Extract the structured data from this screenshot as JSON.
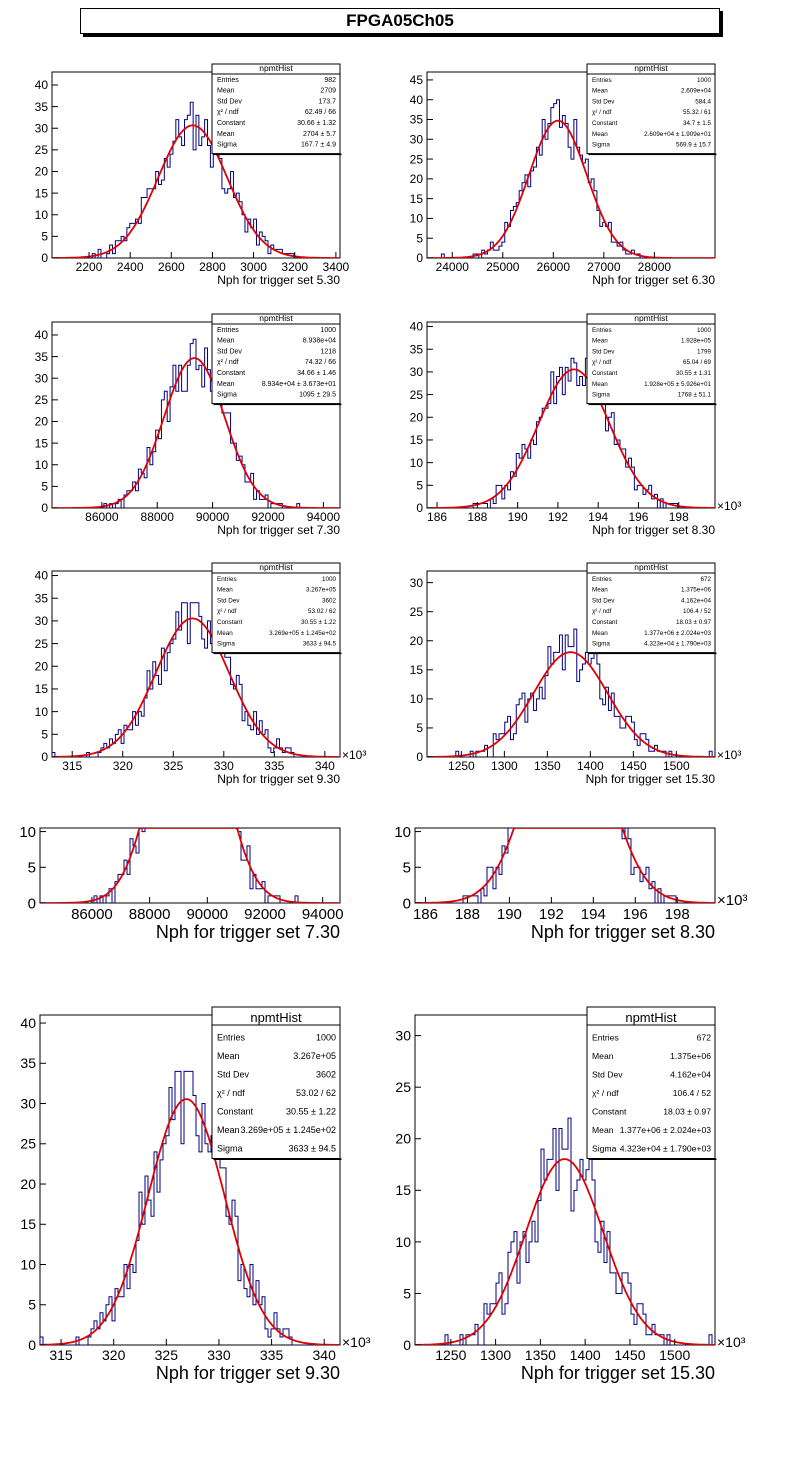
{
  "title": "FPGA05Ch05",
  "colors": {
    "hist": "#000080",
    "fit": "#e00000",
    "axis": "#000000"
  },
  "stat_title": "npmtHist",
  "chart_data": [
    {
      "type": "histogram",
      "xlabel": "Nph for trigger set 5.30",
      "xlim": [
        2020,
        3420
      ],
      "ylim": [
        0,
        43
      ],
      "xticks": [
        2200,
        2400,
        2600,
        2800,
        3000,
        3200,
        3400
      ],
      "xtick_labels": [
        "2200",
        "2400",
        "2600",
        "2800",
        "3000",
        "3200",
        "3400"
      ],
      "yticks": [
        0,
        5,
        10,
        15,
        20,
        25,
        30,
        35,
        40
      ],
      "multiplier": "",
      "fit": {
        "constant": 30.66,
        "mean": 2704,
        "sigma": 167.7
      },
      "noise_seed": 11,
      "stats": [
        [
          "Entries",
          "982"
        ],
        [
          "Mean",
          "2709"
        ],
        [
          "Std Dev",
          "173.7"
        ],
        [
          "χ² / ndf",
          "62.49 / 66"
        ],
        [
          "Constant",
          "30.66 ± 1.32"
        ],
        [
          "Mean",
          "2704 ± 5.7"
        ],
        [
          "Sigma",
          "167.7 ± 4.9"
        ]
      ]
    },
    {
      "type": "histogram",
      "xlabel": "Nph for trigger set 6.30",
      "xlim": [
        23500,
        29200
      ],
      "ylim": [
        0,
        47
      ],
      "xticks": [
        24000,
        25000,
        26000,
        27000,
        28000
      ],
      "xtick_labels": [
        "24000",
        "25000",
        "26000",
        "27000",
        "28000"
      ],
      "yticks": [
        0,
        5,
        10,
        15,
        20,
        25,
        30,
        35,
        40,
        45
      ],
      "multiplier": "",
      "fit": {
        "constant": 34.7,
        "mean": 26090,
        "sigma": 569.9
      },
      "noise_seed": 23,
      "stats": [
        [
          "Entries",
          "1000"
        ],
        [
          "Mean",
          "2.609e+04"
        ],
        [
          "Std Dev",
          "584.4"
        ],
        [
          "χ² / ndf",
          "55.32 / 61"
        ],
        [
          "Constant",
          "34.7 ± 1.5"
        ],
        [
          "Mean",
          "2.609e+04 ± 1.909e+01"
        ],
        [
          "Sigma",
          "569.9 ± 15.7"
        ]
      ]
    },
    {
      "type": "histogram",
      "xlabel": "Nph for trigger set 7.30",
      "xlim": [
        84200,
        94600
      ],
      "ylim": [
        0,
        43
      ],
      "xticks": [
        86000,
        88000,
        90000,
        92000,
        94000
      ],
      "xtick_labels": [
        "86000",
        "88000",
        "90000",
        "92000",
        "94000"
      ],
      "yticks": [
        0,
        5,
        10,
        15,
        20,
        25,
        30,
        35,
        40
      ],
      "multiplier": "",
      "fit": {
        "constant": 34.66,
        "mean": 89340,
        "sigma": 1095
      },
      "noise_seed": 37,
      "stats": [
        [
          "Entries",
          "1000"
        ],
        [
          "Mean",
          "8.938e+04"
        ],
        [
          "Std Dev",
          "1218"
        ],
        [
          "χ² / ndf",
          "74.32 / 66"
        ],
        [
          "Constant",
          "34.66 ± 1.46"
        ],
        [
          "Mean",
          "8.934e+04 ± 3.673e+01"
        ],
        [
          "Sigma",
          "1095 ± 29.5"
        ]
      ]
    },
    {
      "type": "histogram",
      "xlabel": "Nph for trigger set 8.30",
      "xlim": [
        185.5,
        199.8
      ],
      "ylim": [
        0,
        41
      ],
      "xticks": [
        186,
        188,
        190,
        192,
        194,
        196,
        198
      ],
      "xtick_labels": [
        "186",
        "188",
        "190",
        "192",
        "194",
        "196",
        "198"
      ],
      "yticks": [
        0,
        5,
        10,
        15,
        20,
        25,
        30,
        35,
        40
      ],
      "multiplier": "×10³",
      "fit": {
        "constant": 30.55,
        "mean": 192.8,
        "sigma": 1.768
      },
      "noise_seed": 41,
      "stats": [
        [
          "Entries",
          "1000"
        ],
        [
          "Mean",
          "1.928e+05"
        ],
        [
          "Std Dev",
          "1799"
        ],
        [
          "χ² / ndf",
          "65.04 / 69"
        ],
        [
          "Constant",
          "30.55 ± 1.31"
        ],
        [
          "Mean",
          "1.928e+05 ± 5.926e+01"
        ],
        [
          "Sigma",
          "1768 ± 51.1"
        ]
      ]
    },
    {
      "type": "histogram",
      "xlabel": "Nph for trigger set 9.30",
      "xlim": [
        313,
        341.5
      ],
      "ylim": [
        0,
        41
      ],
      "xticks": [
        315,
        320,
        325,
        330,
        335,
        340
      ],
      "xtick_labels": [
        "315",
        "320",
        "325",
        "330",
        "335",
        "340"
      ],
      "yticks": [
        0,
        5,
        10,
        15,
        20,
        25,
        30,
        35,
        40
      ],
      "multiplier": "×10³",
      "fit": {
        "constant": 30.55,
        "mean": 326.9,
        "sigma": 3.633
      },
      "noise_seed": 53,
      "stats": [
        [
          "Entries",
          "1000"
        ],
        [
          "Mean",
          "3.267e+05"
        ],
        [
          "Std Dev",
          "3602"
        ],
        [
          "χ² / ndf",
          "53.02 / 62"
        ],
        [
          "Constant",
          "30.55 ± 1.22"
        ],
        [
          "Mean",
          "3.269e+05 ± 1.245e+02"
        ],
        [
          "Sigma",
          "3633 ± 94.5"
        ]
      ]
    },
    {
      "type": "histogram",
      "xlabel": "Nph for trigger set 15.30",
      "xlim": [
        1210,
        1545
      ],
      "ylim": [
        0,
        32
      ],
      "xticks": [
        1250,
        1300,
        1350,
        1400,
        1450,
        1500
      ],
      "xtick_labels": [
        "1250",
        "1300",
        "1350",
        "1400",
        "1450",
        "1500"
      ],
      "yticks": [
        0,
        5,
        10,
        15,
        20,
        25,
        30
      ],
      "multiplier": "×10³",
      "fit": {
        "constant": 18.03,
        "mean": 1377,
        "sigma": 43.23
      },
      "noise_seed": 67,
      "stats": [
        [
          "Entries",
          "672"
        ],
        [
          "Mean",
          "1.375e+06"
        ],
        [
          "Std Dev",
          "4.162e+04"
        ],
        [
          "χ² / ndf",
          "106.4 / 52"
        ],
        [
          "Constant",
          "18.03 ± 0.97"
        ],
        [
          "Mean",
          "1.377e+06 ± 2.024e+03"
        ],
        [
          "Sigma",
          "4.323e+04 ± 1.790e+03"
        ]
      ]
    }
  ],
  "panels": [
    {
      "chart": 0,
      "stats": true
    },
    {
      "chart": 1,
      "stats": true
    },
    {
      "chart": 2,
      "stats": true
    },
    {
      "chart": 3,
      "stats": true
    },
    {
      "chart": 4,
      "stats": true
    },
    {
      "chart": 5,
      "stats": true
    },
    {
      "chart": 2,
      "stats": false,
      "clip_y": 10.5
    },
    {
      "chart": 3,
      "stats": false,
      "clip_y": 10.5
    },
    {
      "chart": 4,
      "stats": true
    },
    {
      "chart": 5,
      "stats": true
    }
  ]
}
